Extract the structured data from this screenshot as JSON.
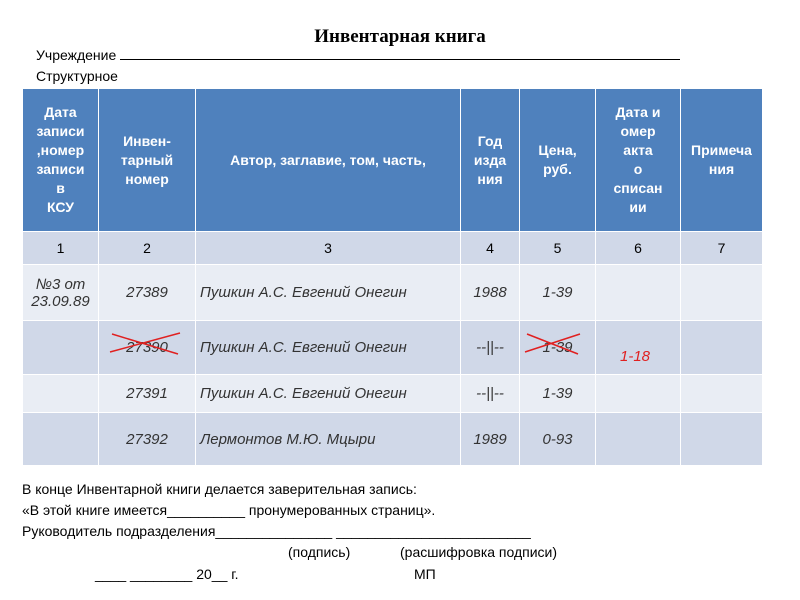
{
  "header": {
    "title": "Инвентарная книга",
    "institution_label": "Учреждение",
    "unit_label": "Структурное"
  },
  "table": {
    "columns": [
      "Дата\nзаписи\n,номер\nзаписи\nв\nКСУ",
      "Инвен-\nтарный\nномер",
      "Автор, заглавие, том, часть,",
      "Год\nизда\nния",
      "Цена,\nруб.",
      "Дата и\nомер\nакта\nо\nсписан\nии",
      "Примеча\nния"
    ],
    "numbers": [
      "1",
      "2",
      "3",
      "4",
      "5",
      "6",
      "7"
    ],
    "rows": [
      [
        "№3 от\n23.09.89",
        "27389",
        "Пушкин А.С. Евгений Онегин",
        "1988",
        "1-39",
        null,
        null
      ],
      [
        null,
        "27390",
        "Пушкин А.С. Евгений Онегин",
        "--||--",
        "1-39",
        null,
        null
      ],
      [
        null,
        "27391",
        "Пушкин А.С. Евгений Онегин",
        "--||--",
        "1-39",
        null,
        null
      ],
      [
        null,
        "27392",
        "Лермонтов М.Ю. Мцыри",
        "1989",
        "0-93",
        null,
        null
      ]
    ],
    "correction": "1-18"
  },
  "footer": {
    "lines": [
      "В конце Инвентарной книги делается заверительная запись:",
      "«В этой книге имеется__________ пронумерованных страниц».",
      "Руководитель подразделения_______________ _________________________"
    ],
    "signature": "(подпись)",
    "decoding": "(расшифровка подписи)",
    "date": "____ ________ 20__ г.",
    "stamp": "МП"
  }
}
